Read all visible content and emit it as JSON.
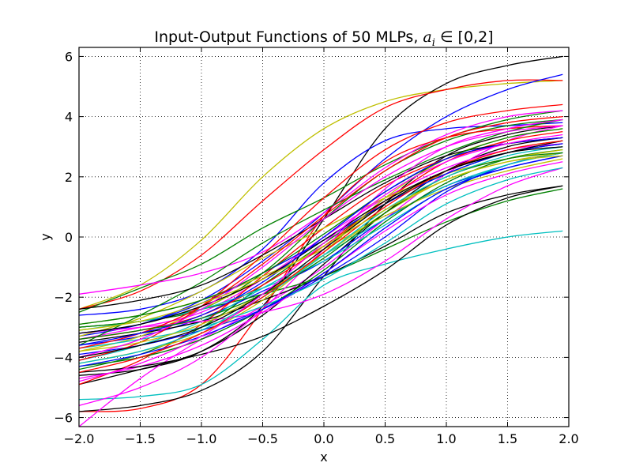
{
  "chart_data": {
    "type": "line",
    "title": {
      "prefix": "Input-Output Functions of 50 MLPs, ",
      "math": "a",
      "math_sub": "i",
      "suffix": " ∈ [0,2]"
    },
    "xlabel": "x",
    "ylabel": "y",
    "xlim": [
      -2.0,
      2.0
    ],
    "ylim": [
      -6.3,
      6.3
    ],
    "x_ticks": [
      -2.0,
      -1.5,
      -1.0,
      -0.5,
      0.0,
      0.5,
      1.0,
      1.5,
      2.0
    ],
    "x_tick_labels": [
      "−2.0",
      "−1.5",
      "−1.0",
      "−0.5",
      "0.0",
      "0.5",
      "1.0",
      "1.5",
      "2.0"
    ],
    "y_ticks": [
      -6,
      -4,
      -2,
      0,
      2,
      4,
      6
    ],
    "y_tick_labels": [
      "−6",
      "−4",
      "−2",
      "0",
      "2",
      "4",
      "6"
    ],
    "grid": true,
    "x": [
      -2.0,
      -1.5,
      -1.0,
      -0.5,
      0.0,
      0.5,
      1.0,
      1.5,
      1.95
    ],
    "series": [
      {
        "color": "#bfbf00",
        "values": [
          -2.4,
          -1.6,
          -0.1,
          2.0,
          3.6,
          4.5,
          4.9,
          5.1,
          5.2
        ]
      },
      {
        "color": "#000000",
        "values": [
          -4.6,
          -4.4,
          -3.8,
          -2.3,
          0.6,
          3.6,
          5.1,
          5.7,
          6.0
        ]
      },
      {
        "color": "#ff0000",
        "values": [
          -2.4,
          -1.8,
          -0.6,
          1.2,
          2.9,
          4.3,
          4.9,
          5.2,
          5.2
        ]
      },
      {
        "color": "#0000ff",
        "values": [
          -3.3,
          -2.9,
          -2.1,
          -0.8,
          0.8,
          2.6,
          4.0,
          4.9,
          5.4
        ]
      },
      {
        "color": "#0000ff",
        "values": [
          -2.6,
          -2.4,
          -1.8,
          -0.4,
          1.8,
          3.2,
          3.6,
          3.7,
          3.8
        ]
      },
      {
        "color": "#008000",
        "values": [
          -2.5,
          -1.7,
          -0.9,
          0.3,
          1.3,
          2.4,
          3.3,
          3.9,
          4.2
        ]
      },
      {
        "color": "#ff00ff",
        "values": [
          -1.9,
          -1.6,
          -1.2,
          -0.5,
          0.8,
          2.3,
          3.4,
          4.0,
          4.2
        ]
      },
      {
        "color": "#008000",
        "values": [
          -3.0,
          -2.8,
          -2.4,
          -1.2,
          0.6,
          2.2,
          3.2,
          3.7,
          3.9
        ]
      },
      {
        "color": "#ff0000",
        "values": [
          -5.8,
          -5.7,
          -4.9,
          -2.4,
          0.7,
          2.5,
          3.3,
          3.6,
          3.7
        ]
      },
      {
        "color": "#000000",
        "values": [
          -5.8,
          -5.6,
          -5.1,
          -3.8,
          -1.3,
          1.1,
          2.7,
          3.4,
          3.7
        ]
      },
      {
        "color": "#00bfbf",
        "values": [
          -5.4,
          -5.3,
          -4.9,
          -3.4,
          -1.6,
          -0.9,
          -0.4,
          0.0,
          0.2
        ]
      },
      {
        "color": "#ff00ff",
        "values": [
          -6.3,
          -4.7,
          -3.4,
          -2.3,
          -1.0,
          0.6,
          2.1,
          3.2,
          3.7
        ]
      },
      {
        "color": "#000000",
        "values": [
          -4.9,
          -4.4,
          -3.8,
          -2.6,
          -0.9,
          0.8,
          2.2,
          3.0,
          3.3
        ]
      },
      {
        "color": "#008000",
        "values": [
          -4.4,
          -3.9,
          -3.0,
          -1.6,
          -0.2,
          1.1,
          2.1,
          2.8,
          3.1
        ]
      },
      {
        "color": "#0000ff",
        "values": [
          -3.6,
          -3.3,
          -2.7,
          -1.8,
          -0.8,
          0.6,
          1.7,
          2.3,
          2.7
        ]
      },
      {
        "color": "#00bfbf",
        "values": [
          -4.1,
          -3.6,
          -2.8,
          -1.7,
          -0.6,
          0.6,
          1.7,
          2.4,
          2.8
        ]
      },
      {
        "color": "#bfbf00",
        "values": [
          -3.8,
          -3.3,
          -2.4,
          -1.4,
          -0.3,
          1.1,
          2.2,
          2.9,
          3.2
        ]
      },
      {
        "color": "#ff00ff",
        "values": [
          -3.4,
          -3.0,
          -2.5,
          -1.4,
          0.0,
          1.3,
          2.3,
          2.9,
          3.1
        ]
      },
      {
        "color": "#ff0000",
        "values": [
          -4.9,
          -4.1,
          -2.9,
          -1.3,
          0.3,
          1.7,
          2.6,
          3.1,
          3.3
        ]
      },
      {
        "color": "#000000",
        "values": [
          -3.5,
          -3.2,
          -2.8,
          -2.1,
          -1.3,
          -0.3,
          0.8,
          1.4,
          1.7
        ]
      },
      {
        "color": "#008000",
        "values": [
          -3.0,
          -2.8,
          -2.4,
          -1.9,
          -1.3,
          -0.4,
          0.5,
          1.2,
          1.6
        ]
      },
      {
        "color": "#bfbf00",
        "values": [
          -2.9,
          -2.6,
          -2.1,
          -1.3,
          -0.4,
          0.7,
          1.6,
          2.2,
          2.6
        ]
      },
      {
        "color": "#0000ff",
        "values": [
          -3.9,
          -3.6,
          -3.1,
          -2.4,
          -1.3,
          0.0,
          1.5,
          2.4,
          2.8
        ]
      },
      {
        "color": "#ff00ff",
        "values": [
          -4.7,
          -4.3,
          -3.6,
          -2.5,
          -1.2,
          0.2,
          1.4,
          2.1,
          2.5
        ]
      },
      {
        "color": "#ff0000",
        "values": [
          -3.4,
          -3.1,
          -2.6,
          -1.6,
          -0.3,
          1.2,
          2.5,
          3.2,
          3.5
        ]
      },
      {
        "color": "#008000",
        "values": [
          -4.3,
          -4.0,
          -3.4,
          -2.4,
          -1.1,
          0.5,
          1.8,
          2.6,
          2.9
        ]
      },
      {
        "color": "#00bfbf",
        "values": [
          -3.1,
          -2.8,
          -2.4,
          -1.7,
          -0.8,
          0.4,
          1.6,
          2.4,
          2.8
        ]
      },
      {
        "color": "#000000",
        "values": [
          -4.5,
          -4.3,
          -3.9,
          -3.3,
          -2.3,
          -1.1,
          0.4,
          1.3,
          1.7
        ]
      },
      {
        "color": "#bfbf00",
        "values": [
          -3.3,
          -2.7,
          -1.8,
          -0.7,
          0.3,
          1.3,
          2.1,
          2.6,
          2.9
        ]
      },
      {
        "color": "#ff00ff",
        "values": [
          -3.2,
          -3.0,
          -2.8,
          -2.5,
          -1.9,
          -0.8,
          0.6,
          1.7,
          2.3
        ]
      },
      {
        "color": "#008000",
        "values": [
          -3.6,
          -2.6,
          -1.5,
          -0.2,
          0.9,
          1.9,
          2.8,
          3.5,
          3.9
        ]
      },
      {
        "color": "#0000ff",
        "values": [
          -3.2,
          -2.9,
          -2.2,
          -1.2,
          -0.1,
          1.1,
          2.1,
          2.8,
          3.1
        ]
      },
      {
        "color": "#ff0000",
        "values": [
          -4.1,
          -3.5,
          -2.3,
          -0.6,
          1.3,
          2.9,
          3.8,
          4.2,
          4.4
        ]
      },
      {
        "color": "#bfbf00",
        "values": [
          -4.2,
          -3.8,
          -3.2,
          -2.1,
          -0.5,
          1.3,
          2.6,
          3.3,
          3.6
        ]
      },
      {
        "color": "#000000",
        "values": [
          -2.4,
          -2.1,
          -1.6,
          -0.6,
          0.6,
          1.8,
          2.7,
          3.1,
          3.3
        ]
      },
      {
        "color": "#ff00ff",
        "values": [
          -5.6,
          -5.0,
          -4.0,
          -2.4,
          -0.4,
          1.6,
          3.0,
          3.6,
          3.9
        ]
      },
      {
        "color": "#00bfbf",
        "values": [
          -3.7,
          -3.4,
          -3.0,
          -2.3,
          -1.4,
          -0.2,
          1.1,
          1.9,
          2.3
        ]
      },
      {
        "color": "#0000ff",
        "values": [
          -4.3,
          -3.9,
          -3.3,
          -2.4,
          -1.2,
          0.3,
          1.6,
          2.3,
          2.7
        ]
      },
      {
        "color": "#008000",
        "values": [
          -2.9,
          -2.6,
          -2.1,
          -1.2,
          0.1,
          1.5,
          2.6,
          3.3,
          3.6
        ]
      },
      {
        "color": "#ff0000",
        "values": [
          -3.7,
          -3.2,
          -2.3,
          -0.9,
          0.7,
          2.2,
          3.3,
          3.8,
          4.0
        ]
      },
      {
        "color": "#000000",
        "values": [
          -3.2,
          -2.9,
          -2.3,
          -1.4,
          -0.1,
          1.2,
          2.2,
          2.8,
          3.2
        ]
      },
      {
        "color": "#bfbf00",
        "values": [
          -3.8,
          -3.5,
          -2.9,
          -1.9,
          -0.6,
          0.8,
          1.9,
          2.5,
          2.8
        ]
      },
      {
        "color": "#ff00ff",
        "values": [
          -4.0,
          -3.4,
          -2.4,
          -1.0,
          0.6,
          2.0,
          3.0,
          3.5,
          3.7
        ]
      },
      {
        "color": "#0000ff",
        "values": [
          -3.6,
          -3.2,
          -2.6,
          -1.5,
          0.0,
          1.5,
          2.6,
          3.1,
          3.3
        ]
      },
      {
        "color": "#008000",
        "values": [
          -3.4,
          -3.1,
          -2.7,
          -1.9,
          -0.7,
          0.8,
          2.0,
          2.6,
          2.8
        ]
      },
      {
        "color": "#00bfbf",
        "values": [
          -4.2,
          -3.8,
          -3.1,
          -2.0,
          -0.6,
          0.9,
          2.0,
          2.7,
          3.0
        ]
      },
      {
        "color": "#ff0000",
        "values": [
          -4.5,
          -4.0,
          -3.2,
          -2.0,
          -0.5,
          1.0,
          2.2,
          2.9,
          3.2
        ]
      },
      {
        "color": "#000000",
        "values": [
          -4.0,
          -3.6,
          -3.0,
          -1.9,
          -0.4,
          1.1,
          2.2,
          2.8,
          3.0
        ]
      },
      {
        "color": "#bfbf00",
        "values": [
          -3.1,
          -2.8,
          -2.2,
          -1.4,
          -0.3,
          0.9,
          1.9,
          2.5,
          2.7
        ]
      },
      {
        "color": "#ff00ff",
        "values": [
          -4.8,
          -4.2,
          -3.3,
          -1.9,
          -0.2,
          1.4,
          2.5,
          3.1,
          3.4
        ]
      }
    ]
  }
}
